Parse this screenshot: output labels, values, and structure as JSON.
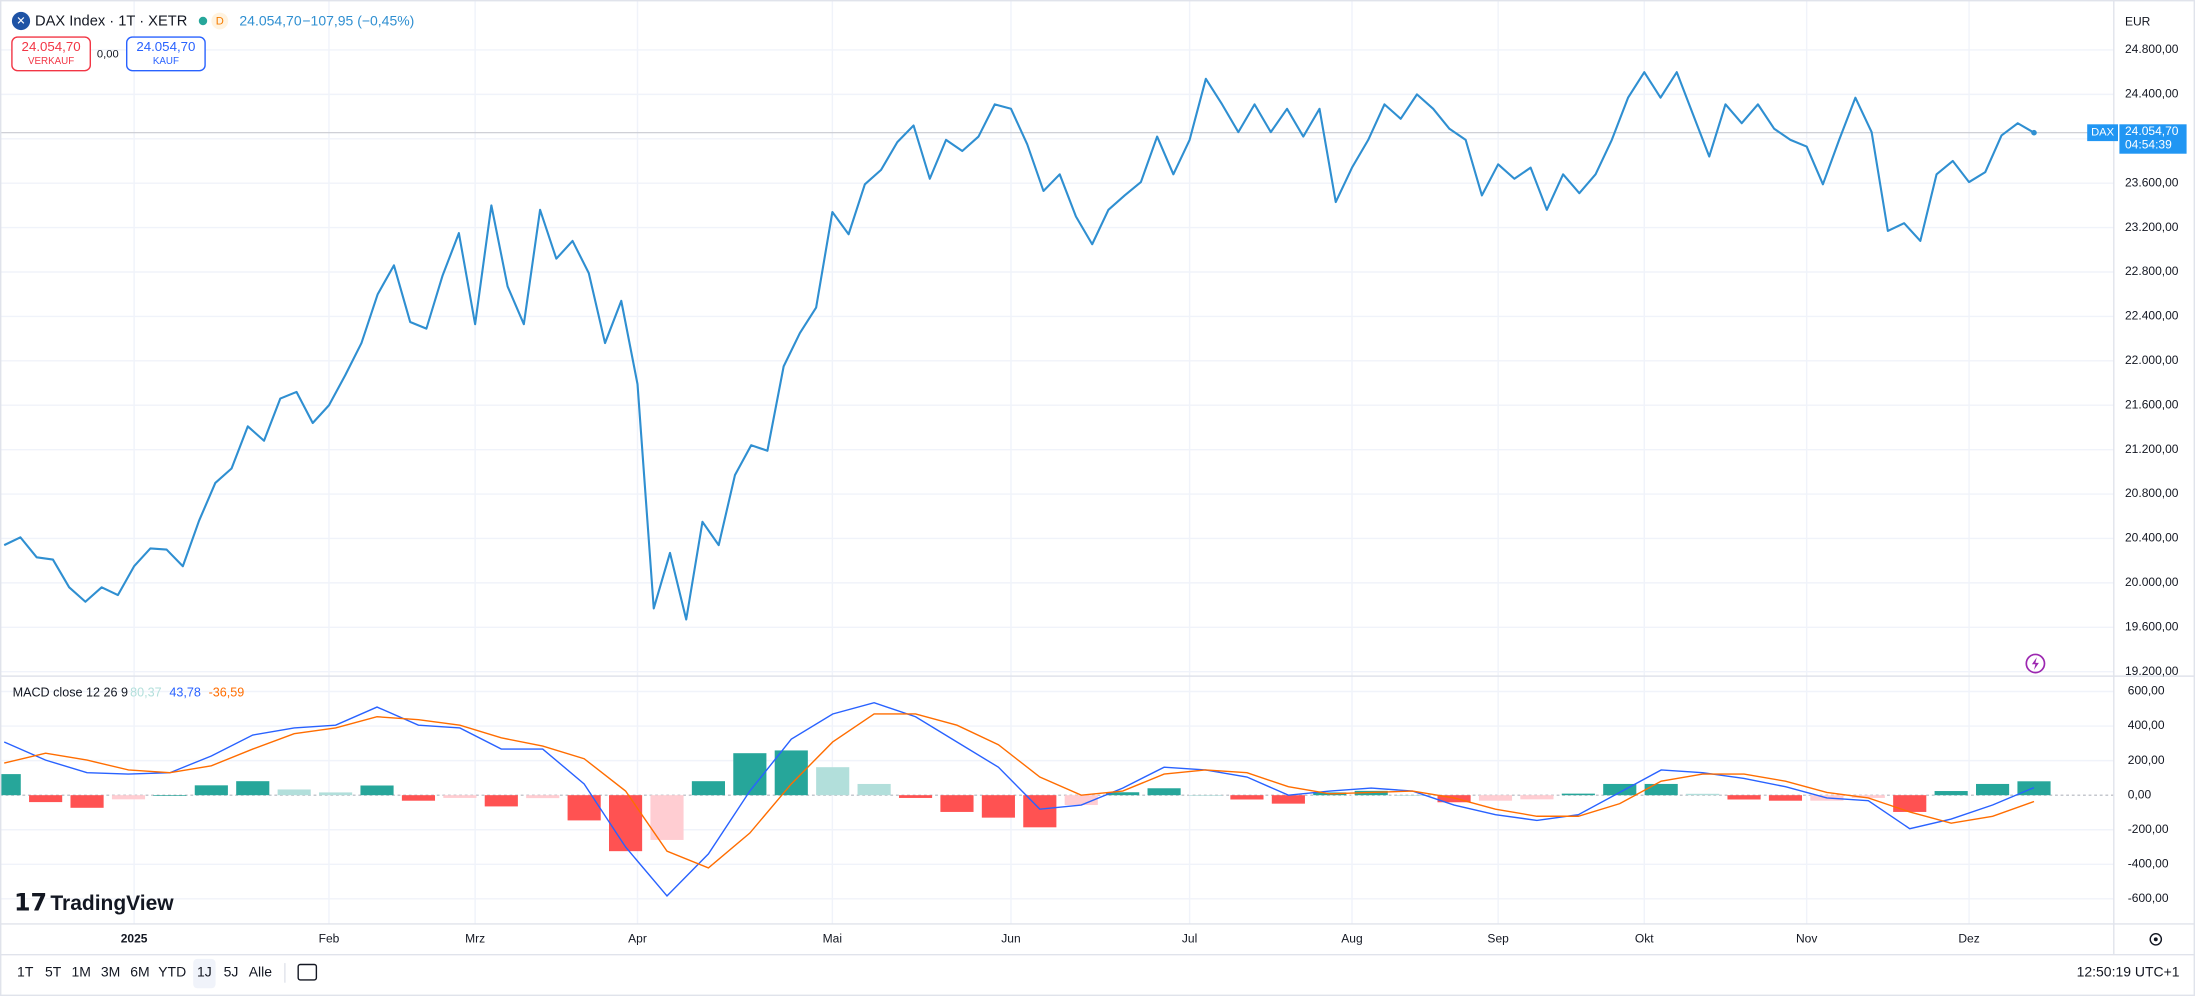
{
  "header": {
    "symbol": "DAX Index · 1T · XETR",
    "badge": "D",
    "last": "24.054,70",
    "change": "−107,95 (−0,45%)"
  },
  "trade": {
    "sell_price": "24.054,70",
    "sell_label": "VERKAUF",
    "spread": "0,00",
    "buy_price": "24.054,70",
    "buy_label": "KAUF"
  },
  "currency": "EUR",
  "price_tag": {
    "symbol": "DAX",
    "value": "24.054,70",
    "countdown": "04:54:39"
  },
  "macd_legend": {
    "title": "MACD close 12 26 9",
    "histogram": "80,37",
    "macd": "43,78",
    "signal": "-36,59"
  },
  "logo": "TradingView",
  "ranges": [
    "1T",
    "5T",
    "1M",
    "3M",
    "6M",
    "YTD",
    "1J",
    "5J",
    "Alle"
  ],
  "clock": "12:50:19 UTC+1",
  "chart_data": [
    {
      "type": "line",
      "color": "#2f8fd1",
      "values": [
        20340,
        20410,
        20230,
        20210,
        19960,
        19830,
        19960,
        19890,
        20150,
        20310,
        20300,
        20150,
        20560,
        20900,
        21030,
        21410,
        21280,
        21660,
        21720,
        21440,
        21600,
        21870,
        22160,
        22600,
        22860,
        22350,
        22290,
        22770,
        23150,
        22330,
        23400,
        22670,
        22330,
        23360,
        22920,
        23080,
        22790,
        22160,
        22540,
        21790,
        19770,
        20270,
        19670,
        20550,
        20340,
        20970,
        21240,
        21190,
        21950,
        22250,
        22480,
        23340,
        23140,
        23590,
        23720,
        23970,
        24120,
        23640,
        23990,
        23890,
        24020,
        24310,
        24270,
        23950,
        23530,
        23680,
        23300,
        23050,
        23360,
        23490,
        23610,
        24020,
        23680,
        23990,
        24540,
        24310,
        24060,
        24310,
        24060,
        24270,
        24020,
        24270,
        23430,
        23740,
        23990,
        24310,
        24180,
        24400,
        24270,
        24090,
        23990,
        23490,
        23770,
        23640,
        23740,
        23360,
        23680,
        23510,
        23680,
        23990,
        24370,
        24600,
        24370,
        24600,
        24220,
        23840,
        24310,
        24140,
        24310,
        24090,
        23990,
        23930,
        23590,
        23990,
        24370,
        24060,
        23170,
        23240,
        23080,
        23680,
        23800,
        23610,
        23700,
        24030,
        24140,
        24054.7
      ],
      "ylim": [
        19160,
        25250
      ],
      "yticks": [
        {
          "value": 19200,
          "label": "19.200,00"
        },
        {
          "value": 19600,
          "label": "19.600,00"
        },
        {
          "value": 20000,
          "label": "20.000,00"
        },
        {
          "value": 20400,
          "label": "20.400,00"
        },
        {
          "value": 20800,
          "label": "20.800,00"
        },
        {
          "value": 21200,
          "label": "21.200,00"
        },
        {
          "value": 21600,
          "label": "21.600,00"
        },
        {
          "value": 22000,
          "label": "22.000,00"
        },
        {
          "value": 22400,
          "label": "22.400,00"
        },
        {
          "value": 22800,
          "label": "22.800,00"
        },
        {
          "value": 23200,
          "label": "23.200,00"
        },
        {
          "value": 23600,
          "label": "23.600,00"
        },
        {
          "value": 24000,
          "label": "24.000,00"
        },
        {
          "value": 24400,
          "label": "24.400,00"
        },
        {
          "value": 24800,
          "label": "24.800,00"
        }
      ],
      "xticks": [
        {
          "value": 8,
          "label": "2025"
        },
        {
          "value": 20,
          "label": "Feb"
        },
        {
          "value": 29,
          "label": "Mrz"
        },
        {
          "value": 39,
          "label": "Apr"
        },
        {
          "value": 51,
          "label": "Mai"
        },
        {
          "value": 62,
          "label": "Jun"
        },
        {
          "value": 73,
          "label": "Jul"
        },
        {
          "value": 83,
          "label": "Aug"
        },
        {
          "value": 92,
          "label": "Sep"
        },
        {
          "value": 101,
          "label": "Okt"
        },
        {
          "value": 111,
          "label": "Nov"
        },
        {
          "value": 121,
          "label": "Dez"
        }
      ],
      "grid": true
    },
    {
      "type": "macd",
      "series": [
        {
          "style": "histogram",
          "colors": [
            "#26a69a",
            "#b2dfdb",
            "#ff5252",
            "#ffcdd2"
          ],
          "values": [
            122,
            -40,
            -73,
            -24,
            0,
            57,
            81,
            33,
            16,
            56,
            -32,
            -16,
            -65,
            -17,
            -146,
            -324,
            -259,
            81,
            243,
            259,
            162,
            65,
            -16,
            -97,
            -130,
            -186,
            -57,
            17,
            40,
            0,
            -25,
            -49,
            16,
            25,
            0,
            -41,
            -32,
            -24,
            9,
            65,
            65,
            8,
            -25,
            -32,
            -32,
            -16,
            -97,
            24,
            65,
            80.37
          ]
        },
        {
          "style": "line",
          "color": "#2962ff",
          "values": [
            308,
            203,
            130,
            122,
            130,
            227,
            348,
            389,
            405,
            510,
            405,
            389,
            267,
            267,
            65,
            -300,
            -583,
            -340,
            24,
            324,
            470,
            535,
            454,
            308,
            162,
            -81,
            -57,
            41,
            162,
            146,
            105,
            0,
            24,
            41,
            24,
            -57,
            -113,
            -146,
            -113,
            16,
            146,
            130,
            97,
            49,
            -16,
            -32,
            -194,
            -138,
            -57,
            43.78
          ]
        },
        {
          "style": "line",
          "color": "#ff6d00",
          "values": [
            186,
            243,
            203,
            146,
            130,
            170,
            267,
            356,
            389,
            454,
            437,
            405,
            332,
            284,
            211,
            24,
            -324,
            -421,
            -219,
            65,
            308,
            470,
            470,
            405,
            292,
            105,
            0,
            24,
            122,
            146,
            130,
            49,
            8,
            16,
            24,
            -16,
            -81,
            -122,
            -122,
            -49,
            81,
            122,
            122,
            81,
            16,
            -16,
            -97,
            -162,
            -122,
            -36.59
          ]
        }
      ],
      "ylim": [
        -745,
        689
      ],
      "yticks": [
        {
          "value": 600,
          "label": "600,00"
        },
        {
          "value": 400,
          "label": "400,00"
        },
        {
          "value": 200,
          "label": "200,00"
        },
        {
          "value": 0,
          "label": "0,00"
        },
        {
          "value": -200,
          "label": "-200,00"
        },
        {
          "value": -400,
          "label": "-400,00"
        },
        {
          "value": -600,
          "label": "-600,00"
        }
      ]
    }
  ]
}
